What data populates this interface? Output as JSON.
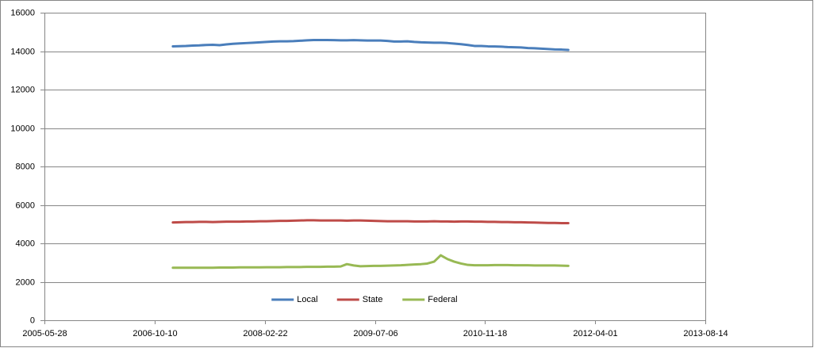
{
  "chart_data": {
    "type": "line",
    "x": [
      "2007-01-01",
      "2007-02-01",
      "2007-03-01",
      "2007-04-01",
      "2007-05-01",
      "2007-06-01",
      "2007-07-01",
      "2007-08-01",
      "2007-09-01",
      "2007-10-01",
      "2007-11-01",
      "2007-12-01",
      "2008-01-01",
      "2008-02-01",
      "2008-03-01",
      "2008-04-01",
      "2008-05-01",
      "2008-06-01",
      "2008-07-01",
      "2008-08-01",
      "2008-09-01",
      "2008-10-01",
      "2008-11-01",
      "2008-12-01",
      "2009-01-01",
      "2009-02-01",
      "2009-03-01",
      "2009-04-01",
      "2009-05-01",
      "2009-06-01",
      "2009-07-01",
      "2009-08-01",
      "2009-09-01",
      "2009-10-01",
      "2009-11-01",
      "2009-12-01",
      "2010-01-01",
      "2010-02-01",
      "2010-03-01",
      "2010-04-01",
      "2010-05-01",
      "2010-06-01",
      "2010-07-01",
      "2010-08-01",
      "2010-09-01",
      "2010-10-01",
      "2010-11-01",
      "2010-12-01",
      "2011-01-01",
      "2011-02-01",
      "2011-03-01",
      "2011-04-01",
      "2011-05-01",
      "2011-06-01",
      "2011-07-01",
      "2011-08-01",
      "2011-09-01",
      "2011-10-01",
      "2011-11-01",
      "2011-12-01"
    ],
    "series": [
      {
        "name": "Local",
        "color": "#4a7ebb",
        "values": [
          14250,
          14260,
          14270,
          14290,
          14300,
          14320,
          14330,
          14310,
          14350,
          14380,
          14400,
          14420,
          14440,
          14460,
          14480,
          14500,
          14510,
          14510,
          14520,
          14540,
          14560,
          14580,
          14580,
          14580,
          14570,
          14560,
          14560,
          14570,
          14560,
          14550,
          14550,
          14550,
          14530,
          14500,
          14500,
          14510,
          14480,
          14460,
          14450,
          14440,
          14440,
          14420,
          14390,
          14360,
          14320,
          14270,
          14270,
          14250,
          14240,
          14230,
          14210,
          14200,
          14190,
          14160,
          14150,
          14130,
          14110,
          14090,
          14080,
          14060
        ]
      },
      {
        "name": "State",
        "color": "#be4b48",
        "values": [
          5090,
          5100,
          5110,
          5110,
          5120,
          5120,
          5110,
          5120,
          5130,
          5130,
          5130,
          5140,
          5140,
          5150,
          5150,
          5160,
          5170,
          5170,
          5180,
          5190,
          5200,
          5200,
          5190,
          5190,
          5190,
          5190,
          5180,
          5190,
          5190,
          5180,
          5170,
          5160,
          5150,
          5150,
          5150,
          5150,
          5140,
          5140,
          5140,
          5150,
          5140,
          5140,
          5130,
          5140,
          5140,
          5130,
          5130,
          5120,
          5120,
          5110,
          5110,
          5100,
          5100,
          5090,
          5080,
          5070,
          5060,
          5060,
          5050,
          5050
        ]
      },
      {
        "name": "Federal",
        "color": "#98b954",
        "values": [
          2730,
          2730,
          2730,
          2730,
          2730,
          2730,
          2730,
          2740,
          2740,
          2740,
          2750,
          2750,
          2750,
          2750,
          2760,
          2760,
          2760,
          2770,
          2770,
          2770,
          2780,
          2780,
          2780,
          2790,
          2790,
          2800,
          2920,
          2850,
          2810,
          2820,
          2830,
          2830,
          2840,
          2850,
          2860,
          2880,
          2900,
          2920,
          2950,
          3050,
          3380,
          3180,
          3050,
          2950,
          2880,
          2860,
          2860,
          2860,
          2870,
          2870,
          2870,
          2860,
          2860,
          2860,
          2850,
          2850,
          2850,
          2850,
          2840,
          2830
        ]
      }
    ],
    "xlim": [
      "2005-05-28",
      "2013-08-14"
    ],
    "xticks": [
      "2005-05-28",
      "2006-10-10",
      "2008-02-22",
      "2009-07-06",
      "2010-11-18",
      "2012-04-01",
      "2013-08-14"
    ],
    "ylim": [
      0,
      16000
    ],
    "yticks": [
      0,
      2000,
      4000,
      6000,
      8000,
      10000,
      12000,
      14000,
      16000
    ],
    "grid": true,
    "legend": "bottom"
  }
}
